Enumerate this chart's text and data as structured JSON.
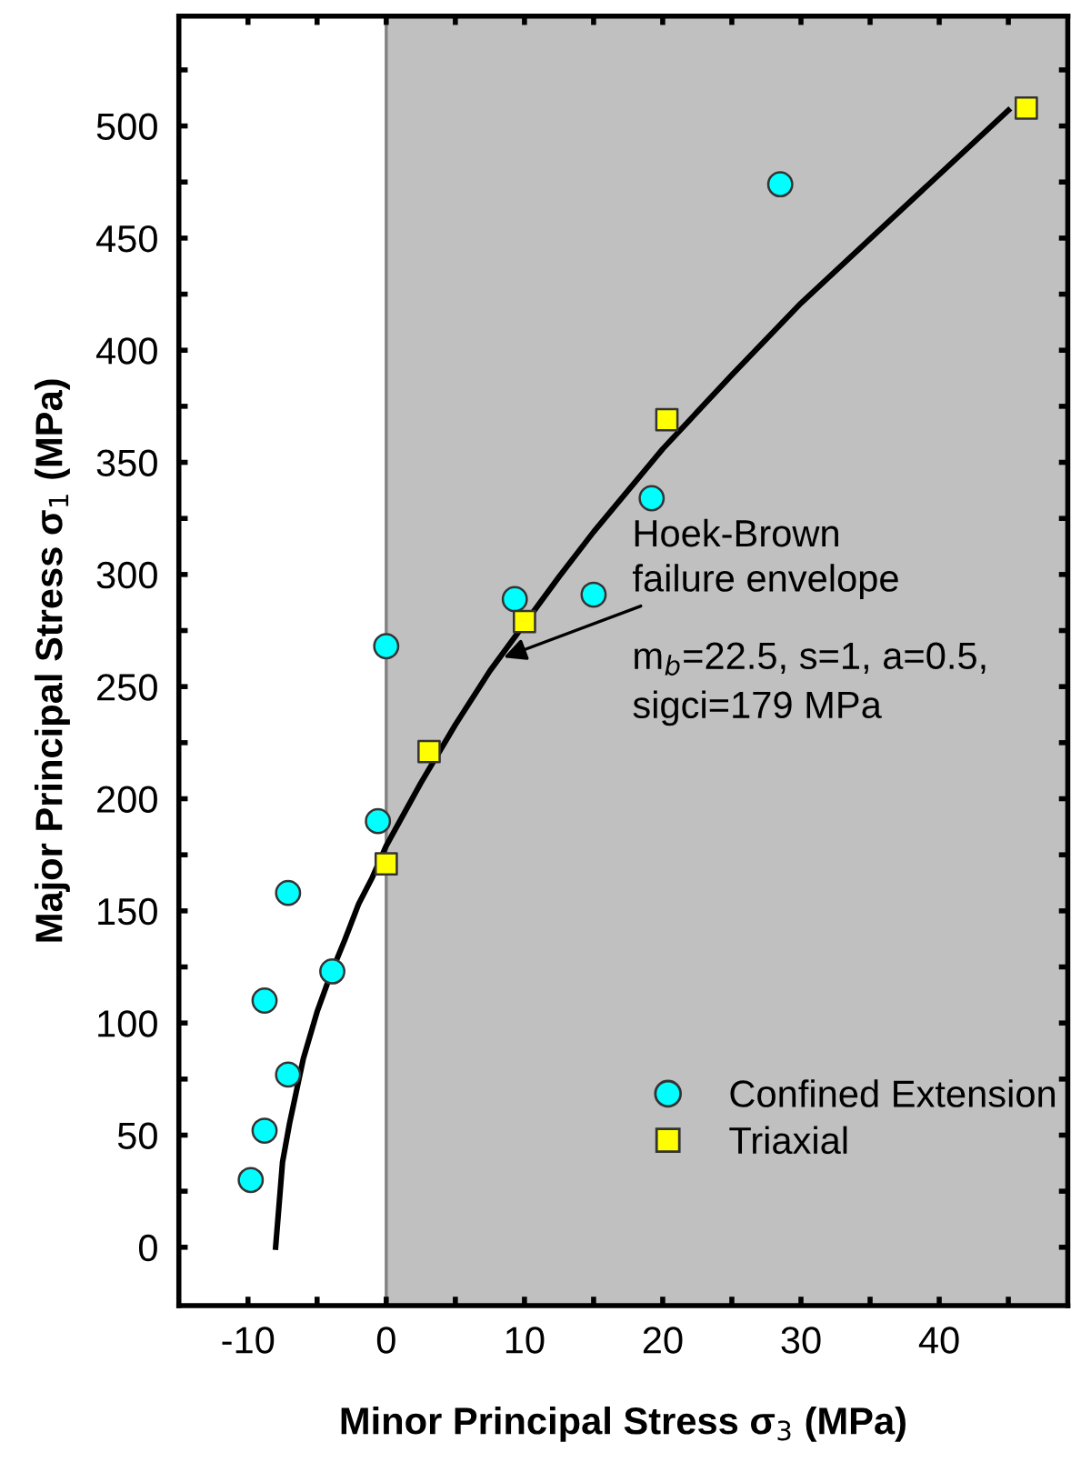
{
  "chart_data": {
    "type": "scatter",
    "xlabel": "Minor Principal Stress σ$_{3}$ (MPa)",
    "ylabel": "Major Principal Stress σ$_{1}$ (MPa)",
    "xlim": [
      -15,
      49.3
    ],
    "ylim": [
      -26,
      549
    ],
    "xticks": [
      -10,
      {
        "value": -5,
        "label": null
      },
      0,
      {
        "value": 5,
        "label": null
      },
      10,
      {
        "value": 15,
        "label": null
      },
      20,
      {
        "value": 25,
        "label": null
      },
      30,
      {
        "value": 35,
        "label": null
      },
      40,
      {
        "value": 45,
        "label": null
      }
    ],
    "yticks": [
      0,
      {
        "value": 25,
        "label": null
      },
      50,
      {
        "value": 75,
        "label": null
      },
      100,
      {
        "value": 125,
        "label": null
      },
      150,
      {
        "value": 175,
        "label": null
      },
      200,
      {
        "value": 225,
        "label": null
      },
      250,
      {
        "value": 275,
        "label": null
      },
      300,
      {
        "value": 325,
        "label": null
      },
      350,
      {
        "value": 375,
        "label": null
      },
      400,
      {
        "value": 425,
        "label": null
      },
      450,
      {
        "value": 475,
        "label": null
      },
      500,
      {
        "value": 525,
        "label": null
      }
    ],
    "grid": false,
    "legend": "bottom right",
    "bands": [
      {
        "axis": "x",
        "from": 0,
        "to": 49.3,
        "color": "#c0c0c0"
      }
    ],
    "ref_lines": [
      {
        "axis": "x",
        "value": 0,
        "color": "#808080"
      }
    ],
    "series": [
      {
        "name": "Confined Extension",
        "marker": "circle",
        "color": "#00ffff",
        "x": [
          -7.1,
          -3.9,
          -8.8,
          -7.1,
          -8.8,
          -9.8,
          19.2,
          9.3,
          15.0,
          0,
          -0.6,
          28.5
        ],
        "values": [
          158,
          123,
          110,
          77,
          52,
          30,
          334,
          289,
          291,
          268,
          190,
          474
        ]
      },
      {
        "name": "Triaxial",
        "marker": "square",
        "color": "#ffff00",
        "x": [
          46.3,
          20.3,
          10.0,
          3.1,
          0
        ],
        "values": [
          508,
          369,
          279,
          221,
          171
        ]
      },
      {
        "type": "line",
        "color": "#000000",
        "line_style": "solid",
        "marker": "none",
        "x": [
          -8,
          -7.5,
          -7,
          -6,
          -5,
          -4,
          -3,
          -2,
          -1,
          0,
          2.5,
          5,
          7.5,
          12.5,
          15,
          20,
          25,
          30,
          45
        ],
        "values": [
          0,
          38,
          55,
          84,
          105,
          122,
          137,
          153,
          165,
          179,
          207,
          233,
          257,
          299,
          319,
          356,
          389,
          421,
          507
        ]
      }
    ],
    "annotations": [
      {
        "text": "Hoek-Brown\nfailure envelope",
        "x": 8.5,
        "y": 263
      },
      "m$_{b}$=22.5, s=1, a=0.5,\nsigci=179 MPa"
    ]
  }
}
